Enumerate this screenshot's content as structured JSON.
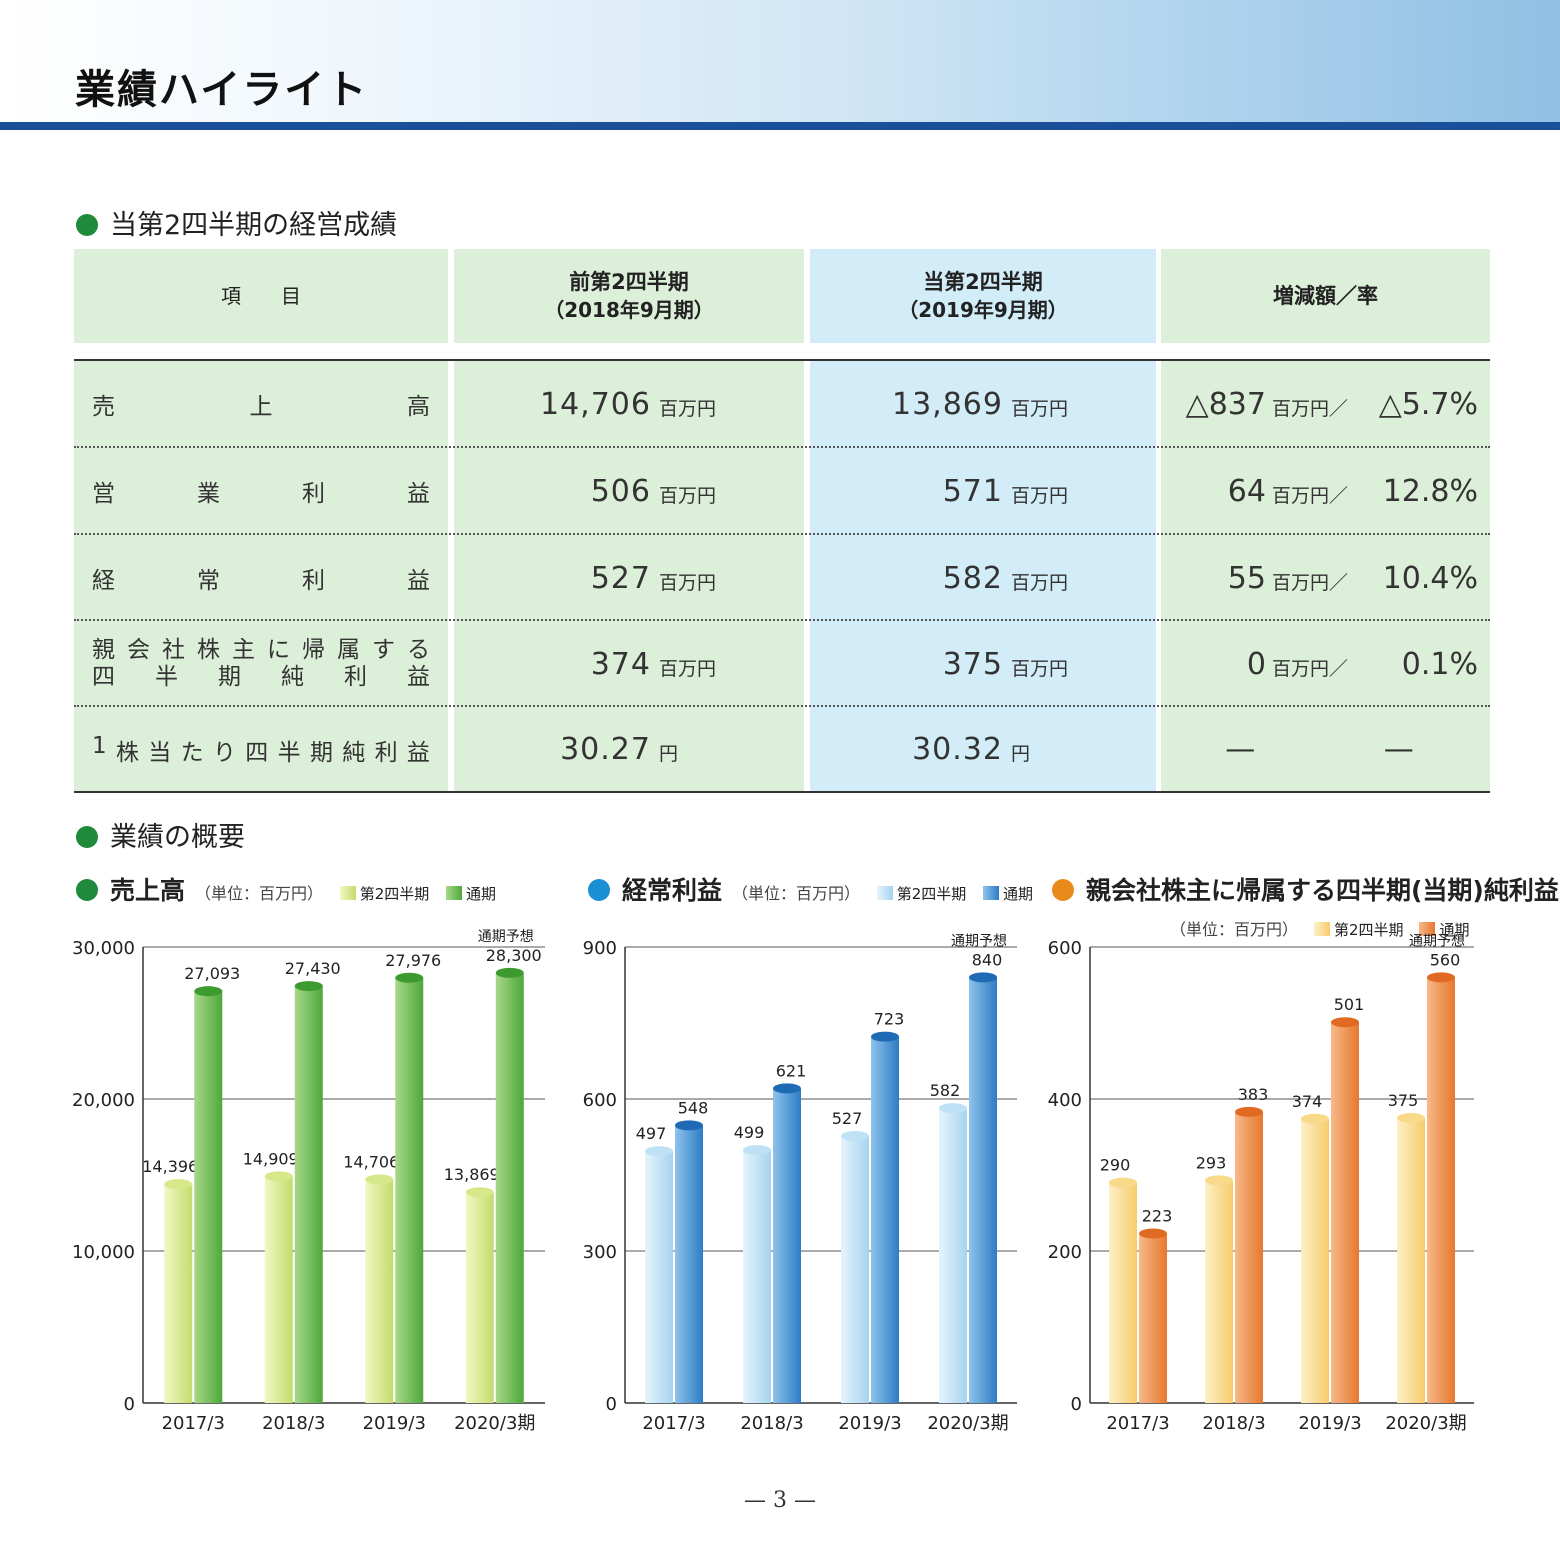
{
  "header": {
    "title": "業績ハイライト"
  },
  "section1": {
    "title": "当第2四半期の経営成績"
  },
  "table": {
    "headers": {
      "item": "項　　目",
      "prev_title": "前第2四半期",
      "prev_sub": "（2018年9月期）",
      "curr_title": "当第2四半期",
      "curr_sub": "（2019年9月期）",
      "change": "増減額／率"
    },
    "unit": "百万円",
    "rows": [
      {
        "label": [
          "売",
          "上",
          "高"
        ],
        "prev": "14,706",
        "prev_unit": "百万円",
        "curr": "13,869",
        "curr_unit": "百万円",
        "chg": "△837",
        "chg_unit": "百万円／",
        "rate": "△5.7%"
      },
      {
        "label": [
          "営",
          "業",
          "利",
          "益"
        ],
        "prev": "506",
        "prev_unit": "百万円",
        "curr": "571",
        "curr_unit": "百万円",
        "chg": "64",
        "chg_unit": "百万円／",
        "rate": "12.8%"
      },
      {
        "label": [
          "経",
          "常",
          "利",
          "益"
        ],
        "prev": "527",
        "prev_unit": "百万円",
        "curr": "582",
        "curr_unit": "百万円",
        "chg": "55",
        "chg_unit": "百万円／",
        "rate": "10.4%"
      },
      {
        "label_line1": [
          "親",
          "会",
          "社",
          "株",
          "主",
          "に",
          "帰",
          "属",
          "す",
          "る"
        ],
        "label_line2": [
          "四",
          "半",
          "期",
          "純",
          "利",
          "益"
        ],
        "prev": "374",
        "prev_unit": "百万円",
        "curr": "375",
        "curr_unit": "百万円",
        "chg": "0",
        "chg_unit": "百万円／",
        "rate": "0.1%"
      },
      {
        "label": [
          "1",
          "株",
          "当",
          "た",
          "り",
          "四",
          "半",
          "期",
          "純",
          "利",
          "益"
        ],
        "prev": "30.27",
        "prev_unit": "円",
        "curr": "30.32",
        "curr_unit": "円",
        "chg": "—",
        "rate": "—"
      }
    ]
  },
  "section2": {
    "title": "業績の概要"
  },
  "legend": {
    "q2": "第2四半期",
    "full": "通期"
  },
  "forecast_label": "通期予想",
  "colors": {
    "green_dot": "#1f8a3c",
    "blue_dot": "#1b8fd3",
    "orange_dot": "#ea8a1a",
    "header_rule": "#1a4f9a"
  },
  "chart_data": [
    {
      "type": "bar",
      "title": "売上高",
      "unit_note": "（単位：百万円）",
      "categories": [
        "2017/3",
        "2018/3",
        "2019/3",
        "2020/3期"
      ],
      "series": [
        {
          "name": "第2四半期",
          "values": [
            14396,
            14909,
            14706,
            13869
          ],
          "labels": [
            "14,396",
            "14,909",
            "14,706",
            "13,869"
          ]
        },
        {
          "name": "通期",
          "values": [
            27093,
            27430,
            27976,
            28300
          ],
          "labels": [
            "27,093",
            "27,430",
            "27,976",
            "28,300"
          ]
        }
      ],
      "ylim": [
        0,
        30000
      ],
      "yticks": [
        "0",
        "10,000",
        "20,000",
        "30,000"
      ],
      "colors": {
        "q2_light": "#f2f7c4",
        "q2_dark": "#c3dc6c",
        "full_light": "#a8d88a",
        "full_dark": "#4ea83a",
        "full_top": "#3c9a2e",
        "q2_top": "#d6e88a"
      }
    },
    {
      "type": "bar",
      "title": "経常利益",
      "unit_note": "（単位：百万円）",
      "categories": [
        "2017/3",
        "2018/3",
        "2019/3",
        "2020/3期"
      ],
      "series": [
        {
          "name": "第2四半期",
          "values": [
            497,
            499,
            527,
            582
          ],
          "labels": [
            "497",
            "499",
            "527",
            "582"
          ]
        },
        {
          "name": "通期",
          "values": [
            548,
            621,
            723,
            840
          ],
          "labels": [
            "548",
            "621",
            "723",
            "840"
          ]
        }
      ],
      "ylim": [
        0,
        900
      ],
      "yticks": [
        "0",
        "300",
        "600",
        "900"
      ],
      "colors": {
        "q2_light": "#e6f4fc",
        "q2_dark": "#a6d3ef",
        "full_light": "#8ec3ec",
        "full_dark": "#2d7cc4",
        "full_top": "#1f6ab5",
        "q2_top": "#bfe1f5"
      }
    },
    {
      "type": "bar",
      "title": "親会社株主に帰属する四半期(当期)純利益",
      "unit_note": "（単位：百万円）",
      "categories": [
        "2017/3",
        "2018/3",
        "2019/3",
        "2020/3期"
      ],
      "series": [
        {
          "name": "第2四半期",
          "values": [
            290,
            293,
            374,
            375
          ],
          "labels": [
            "290",
            "293",
            "374",
            "375"
          ]
        },
        {
          "name": "通期",
          "values": [
            223,
            383,
            501,
            560
          ],
          "labels": [
            "223",
            "383",
            "501",
            "560"
          ]
        }
      ],
      "ylim": [
        0,
        600
      ],
      "yticks": [
        "0",
        "200",
        "400",
        "600"
      ],
      "colors": {
        "q2_light": "#fdf0c6",
        "q2_dark": "#f6cc6c",
        "full_light": "#f7b98a",
        "full_dark": "#e8772e",
        "full_top": "#e06a22",
        "q2_top": "#f9da8a"
      }
    }
  ],
  "page_number": "— 3 —"
}
